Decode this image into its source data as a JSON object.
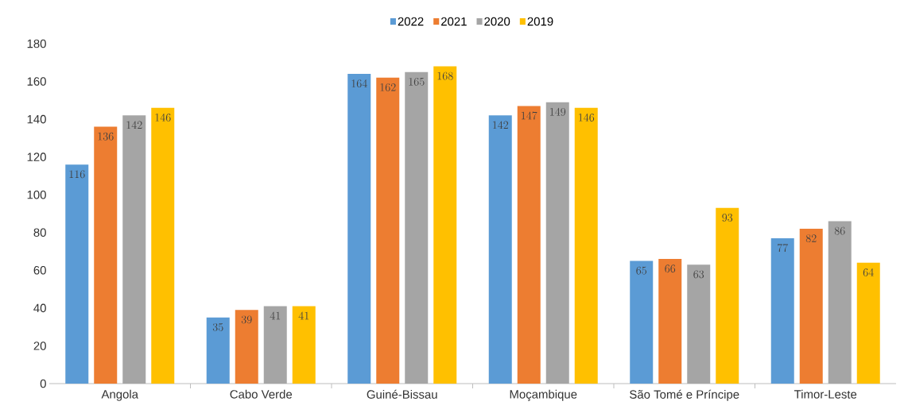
{
  "chart_data": {
    "type": "bar",
    "categories": [
      "Angola",
      "Cabo Verde",
      "Guiné-Bissau",
      "Moçambique",
      "São Tomé e Príncipe",
      "Timor-Leste"
    ],
    "series": [
      {
        "name": "2022",
        "color": "#5b9bd5",
        "values": [
          116,
          35,
          164,
          142,
          65,
          77
        ]
      },
      {
        "name": "2021",
        "color": "#ed7d31",
        "values": [
          136,
          39,
          162,
          147,
          66,
          82
        ]
      },
      {
        "name": "2020",
        "color": "#a5a5a5",
        "values": [
          142,
          41,
          165,
          149,
          63,
          86
        ]
      },
      {
        "name": "2019",
        "color": "#ffc000",
        "values": [
          146,
          41,
          168,
          146,
          93,
          64
        ]
      }
    ],
    "ylim": [
      0,
      180
    ],
    "yticks": [
      0,
      20,
      40,
      60,
      80,
      100,
      120,
      140,
      160,
      180
    ],
    "data_labels": true,
    "legend": "top"
  }
}
